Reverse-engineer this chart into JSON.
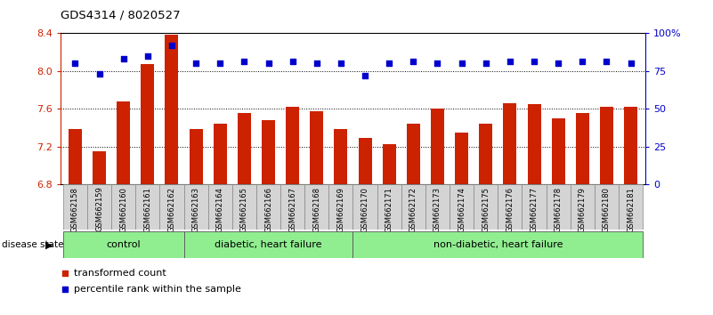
{
  "title": "GDS4314 / 8020527",
  "samples": [
    "GSM662158",
    "GSM662159",
    "GSM662160",
    "GSM662161",
    "GSM662162",
    "GSM662163",
    "GSM662164",
    "GSM662165",
    "GSM662166",
    "GSM662167",
    "GSM662168",
    "GSM662169",
    "GSM662170",
    "GSM662171",
    "GSM662172",
    "GSM662173",
    "GSM662174",
    "GSM662175",
    "GSM662176",
    "GSM662177",
    "GSM662178",
    "GSM662179",
    "GSM662180",
    "GSM662181"
  ],
  "bar_values": [
    7.38,
    7.15,
    7.68,
    8.07,
    8.38,
    7.38,
    7.44,
    7.55,
    7.48,
    7.62,
    7.57,
    7.38,
    7.29,
    7.22,
    7.44,
    7.6,
    7.35,
    7.44,
    7.66,
    7.65,
    7.5,
    7.55,
    7.62,
    7.62
  ],
  "dot_values": [
    80,
    73,
    83,
    85,
    92,
    80,
    80,
    81,
    80,
    81,
    80,
    80,
    72,
    80,
    81,
    80,
    80,
    80,
    81,
    81,
    80,
    81,
    81,
    80
  ],
  "bar_color": "#cc2200",
  "dot_color": "#0000cc",
  "ylim_left": [
    6.8,
    8.4
  ],
  "ylim_right": [
    0,
    100
  ],
  "yticks_left": [
    6.8,
    7.2,
    7.6,
    8.0,
    8.4
  ],
  "yticks_right": [
    0,
    25,
    50,
    75,
    100
  ],
  "ytick_labels_right": [
    "0",
    "25",
    "50",
    "75",
    "100%"
  ],
  "gridlines": [
    8.0,
    7.6,
    7.2
  ],
  "group_labels": [
    "control",
    "diabetic, heart failure",
    "non-diabetic, heart failure"
  ],
  "group_starts": [
    0,
    5,
    12
  ],
  "group_ends": [
    5,
    12,
    24
  ],
  "group_bg_color": "#90ee90",
  "legend_bar_label": "transformed count",
  "legend_dot_label": "percentile rank within the sample",
  "disease_state_label": "disease state"
}
